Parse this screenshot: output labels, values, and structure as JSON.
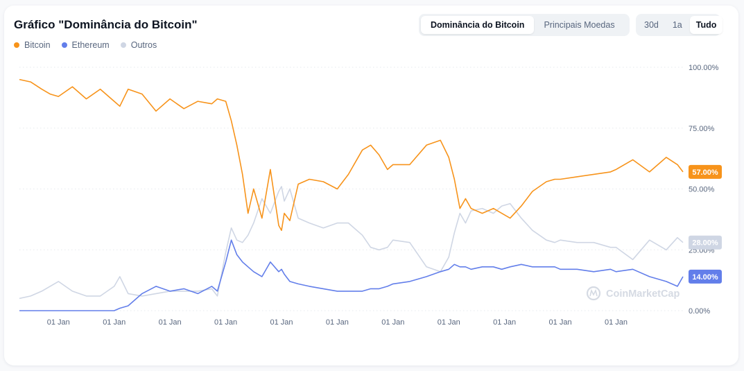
{
  "header": {
    "title": "Gráfico \"Dominância do Bitcoin\"",
    "tabs": [
      {
        "label": "Dominância do Bitcoin",
        "active": true
      },
      {
        "label": "Principais Moedas",
        "active": false
      }
    ],
    "ranges": [
      {
        "label": "30d",
        "active": false
      },
      {
        "label": "1a",
        "active": false
      },
      {
        "label": "Tudo",
        "active": true
      }
    ]
  },
  "watermark": "CoinMarketCap",
  "chart_data": {
    "type": "line",
    "y_unit": "%",
    "ylim": [
      0,
      100
    ],
    "y_ticks": [
      "100.00%",
      "75.00%",
      "50.00%",
      "25.00%",
      "0.00%"
    ],
    "x_ticks": [
      "01 Jan",
      "01 Jan",
      "01 Jan",
      "01 Jan",
      "01 Jan",
      "01 Jan",
      "01 Jan",
      "01 Jan",
      "01 Jan",
      "01 Jan",
      "01 Jan"
    ],
    "grid": true,
    "legend_position": "top-left",
    "x": [
      2013.3,
      2013.5,
      2013.7,
      2013.85,
      2014.0,
      2014.25,
      2014.5,
      2014.75,
      2015.0,
      2015.1,
      2015.25,
      2015.5,
      2015.75,
      2016.0,
      2016.25,
      2016.5,
      2016.75,
      2016.85,
      2017.0,
      2017.1,
      2017.2,
      2017.3,
      2017.4,
      2017.5,
      2017.65,
      2017.8,
      2017.95,
      2018.0,
      2018.05,
      2018.15,
      2018.3,
      2018.5,
      2018.75,
      2019.0,
      2019.2,
      2019.45,
      2019.6,
      2019.75,
      2019.9,
      2020.0,
      2020.3,
      2020.6,
      2020.85,
      2021.0,
      2021.1,
      2021.2,
      2021.3,
      2021.4,
      2021.6,
      2021.8,
      2021.95,
      2022.1,
      2022.3,
      2022.5,
      2022.75,
      2022.9,
      2023.0,
      2023.3,
      2023.6,
      2023.9,
      2024.0,
      2024.3,
      2024.6,
      2024.9,
      2025.1,
      2025.2
    ],
    "series": [
      {
        "name": "Bitcoin",
        "color": "#f7931a",
        "values": [
          95,
          94,
          91,
          89,
          88,
          92,
          87,
          91,
          86,
          84,
          91,
          89,
          82,
          87,
          83,
          86,
          85,
          87,
          86,
          78,
          68,
          56,
          40,
          50,
          38,
          58,
          35,
          33,
          40,
          37,
          52,
          54,
          53,
          50,
          56,
          66,
          68,
          64,
          58,
          60,
          60,
          68,
          70,
          63,
          54,
          42,
          46,
          42,
          40,
          42,
          40,
          38,
          43,
          49,
          53,
          54,
          54,
          55,
          56,
          57,
          58,
          62,
          57,
          63,
          60,
          57
        ]
      },
      {
        "name": "Ethereum",
        "color": "#627eea",
        "values": [
          0,
          0,
          0,
          0,
          0,
          0,
          0,
          0,
          0,
          1,
          2,
          7,
          10,
          8,
          9,
          7,
          10,
          8,
          20,
          29,
          23,
          20,
          18,
          16,
          14,
          20,
          16,
          17,
          15,
          12,
          11,
          10,
          9,
          8,
          8,
          8,
          9,
          9,
          10,
          11,
          12,
          14,
          16,
          17,
          19,
          18,
          18,
          17,
          18,
          18,
          17,
          18,
          19,
          18,
          18,
          18,
          17,
          17,
          16,
          17,
          16,
          17,
          14,
          12,
          10,
          14
        ]
      },
      {
        "name": "Outros",
        "color": "#cfd6e4",
        "values": [
          5,
          6,
          8,
          10,
          12,
          8,
          6,
          6,
          10,
          14,
          7,
          6,
          7,
          8,
          8,
          8,
          9,
          6,
          24,
          34,
          29,
          28,
          31,
          36,
          46,
          40,
          49,
          51,
          45,
          50,
          38,
          36,
          34,
          36,
          36,
          31,
          26,
          25,
          26,
          29,
          28,
          18,
          16,
          22,
          32,
          40,
          36,
          41,
          42,
          40,
          43,
          44,
          38,
          33,
          29,
          28,
          29,
          28,
          28,
          26,
          26,
          21,
          29,
          25,
          30,
          28
        ]
      }
    ],
    "last_labels": [
      {
        "series": "Bitcoin",
        "text": "57.00%",
        "value": 57
      },
      {
        "series": "Outros",
        "text": "28.00%",
        "value": 28
      },
      {
        "series": "Ethereum",
        "text": "14.00%",
        "value": 14
      }
    ]
  }
}
